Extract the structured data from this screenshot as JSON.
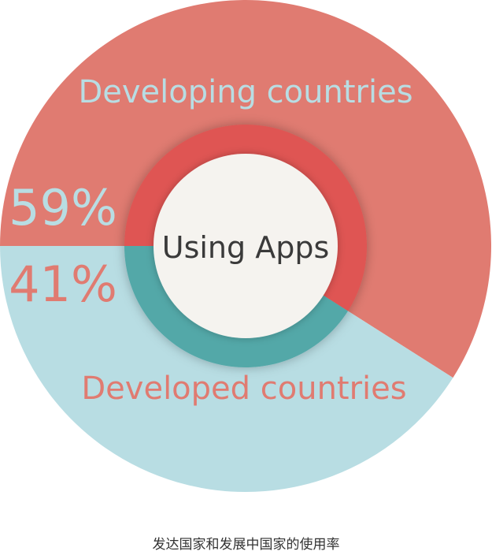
{
  "chart_data": {
    "type": "pie",
    "title": "Using Apps",
    "caption": "发达国家和发展中国家的使用率",
    "slices": [
      {
        "name": "Developing countries",
        "value": 59,
        "value_label": "59%",
        "color": "#e07b71",
        "label_color": "#b8dde3",
        "ring_color": "#df5453"
      },
      {
        "name": "Developed countries",
        "value": 41,
        "value_label": "41%",
        "color": "#b8dde3",
        "label_color": "#e07b71",
        "ring_color": "#52a8a8"
      }
    ],
    "center_fill": "#f5f3ef",
    "center_text_color": "#3a3a3a"
  }
}
